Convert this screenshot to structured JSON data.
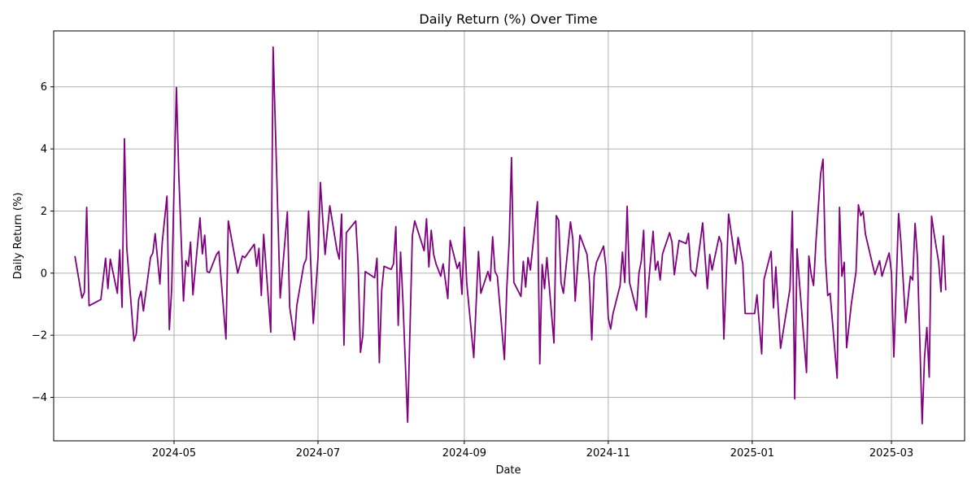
{
  "chart_data": {
    "type": "line",
    "title": "Daily Return (%) Over Time",
    "xlabel": "Date",
    "ylabel": "Daily Return (%)",
    "x_ticks": [
      "2024-05",
      "2024-07",
      "2024-09",
      "2024-11",
      "2025-01",
      "2025-03"
    ],
    "y_ticks": [
      -4,
      -2,
      0,
      2,
      4,
      6
    ],
    "xlim": [
      "2024-03-11",
      "2025-04-01"
    ],
    "ylim": [
      -5.4,
      7.8
    ],
    "grid": true,
    "series": [
      {
        "color": "#800080",
        "points": [
          [
            "2024-03-20",
            0.55
          ],
          [
            "2024-03-23",
            -0.8
          ],
          [
            "2024-03-24",
            -0.62
          ],
          [
            "2024-03-25",
            2.12
          ],
          [
            "2024-03-26",
            -1.05
          ],
          [
            "2024-03-31",
            -0.85
          ],
          [
            "2024-04-02",
            0.48
          ],
          [
            "2024-04-03",
            -0.5
          ],
          [
            "2024-04-04",
            0.45
          ],
          [
            "2024-04-07",
            -0.65
          ],
          [
            "2024-04-08",
            0.75
          ],
          [
            "2024-04-09",
            -1.1
          ],
          [
            "2024-04-10",
            4.33
          ],
          [
            "2024-04-11",
            0.8
          ],
          [
            "2024-04-14",
            -2.18
          ],
          [
            "2024-04-15",
            -1.95
          ],
          [
            "2024-04-16",
            -0.85
          ],
          [
            "2024-04-17",
            -0.58
          ],
          [
            "2024-04-18",
            -1.22
          ],
          [
            "2024-04-21",
            0.5
          ],
          [
            "2024-04-22",
            0.65
          ],
          [
            "2024-04-23",
            1.27
          ],
          [
            "2024-04-25",
            -0.35
          ],
          [
            "2024-04-26",
            1.0
          ],
          [
            "2024-04-28",
            2.48
          ],
          [
            "2024-04-29",
            -1.82
          ],
          [
            "2024-04-30",
            -0.5
          ],
          [
            "2024-05-02",
            5.98
          ],
          [
            "2024-05-03",
            3.2
          ],
          [
            "2024-05-05",
            -0.9
          ],
          [
            "2024-05-06",
            0.4
          ],
          [
            "2024-05-07",
            0.22
          ],
          [
            "2024-05-08",
            1.0
          ],
          [
            "2024-05-09",
            -0.7
          ],
          [
            "2024-05-12",
            1.78
          ],
          [
            "2024-05-13",
            0.62
          ],
          [
            "2024-05-14",
            1.22
          ],
          [
            "2024-05-15",
            0.05
          ],
          [
            "2024-05-16",
            0.02
          ],
          [
            "2024-05-19",
            0.6
          ],
          [
            "2024-05-20",
            0.7
          ],
          [
            "2024-05-23",
            -2.12
          ],
          [
            "2024-05-24",
            1.68
          ],
          [
            "2024-05-28",
            0.0
          ],
          [
            "2024-05-30",
            0.55
          ],
          [
            "2024-05-31",
            0.5
          ],
          [
            "2024-06-04",
            0.93
          ],
          [
            "2024-06-05",
            0.22
          ],
          [
            "2024-06-06",
            0.8
          ],
          [
            "2024-06-07",
            -0.72
          ],
          [
            "2024-06-08",
            1.25
          ],
          [
            "2024-06-11",
            -1.9
          ],
          [
            "2024-06-12",
            7.28
          ],
          [
            "2024-06-15",
            -0.8
          ],
          [
            "2024-06-18",
            1.97
          ],
          [
            "2024-06-19",
            -1.1
          ],
          [
            "2024-06-21",
            -2.15
          ],
          [
            "2024-06-22",
            -1.05
          ],
          [
            "2024-06-25",
            0.28
          ],
          [
            "2024-06-26",
            0.45
          ],
          [
            "2024-06-27",
            2.0
          ],
          [
            "2024-06-29",
            -1.62
          ],
          [
            "2024-07-01",
            0.5
          ],
          [
            "2024-07-02",
            2.92
          ],
          [
            "2024-07-04",
            0.6
          ],
          [
            "2024-07-06",
            2.17
          ],
          [
            "2024-07-09",
            0.75
          ],
          [
            "2024-07-10",
            0.45
          ],
          [
            "2024-07-11",
            1.9
          ],
          [
            "2024-07-12",
            -2.32
          ],
          [
            "2024-07-13",
            1.3
          ],
          [
            "2024-07-17",
            1.68
          ],
          [
            "2024-07-18",
            0.3
          ],
          [
            "2024-07-19",
            -2.55
          ],
          [
            "2024-07-20",
            -2.0
          ],
          [
            "2024-07-21",
            0.05
          ],
          [
            "2024-07-25",
            -0.15
          ],
          [
            "2024-07-26",
            0.48
          ],
          [
            "2024-07-27",
            -2.88
          ],
          [
            "2024-07-28",
            -0.55
          ],
          [
            "2024-07-29",
            0.22
          ],
          [
            "2024-08-01",
            0.12
          ],
          [
            "2024-08-02",
            0.3
          ],
          [
            "2024-08-03",
            1.5
          ],
          [
            "2024-08-04",
            -1.68
          ],
          [
            "2024-08-05",
            0.68
          ],
          [
            "2024-08-06",
            -0.9
          ],
          [
            "2024-08-08",
            -4.8
          ],
          [
            "2024-08-09",
            -1.8
          ],
          [
            "2024-08-10",
            1.2
          ],
          [
            "2024-08-11",
            1.68
          ],
          [
            "2024-08-15",
            0.72
          ],
          [
            "2024-08-16",
            1.75
          ],
          [
            "2024-08-17",
            0.2
          ],
          [
            "2024-08-18",
            1.38
          ],
          [
            "2024-08-19",
            0.6
          ],
          [
            "2024-08-20",
            0.3
          ],
          [
            "2024-08-22",
            -0.1
          ],
          [
            "2024-08-23",
            0.3
          ],
          [
            "2024-08-25",
            -0.82
          ],
          [
            "2024-08-26",
            1.05
          ],
          [
            "2024-08-29",
            0.15
          ],
          [
            "2024-08-30",
            0.35
          ],
          [
            "2024-08-31",
            -0.68
          ],
          [
            "2024-09-01",
            1.48
          ],
          [
            "2024-09-02",
            -0.3
          ],
          [
            "2024-09-05",
            -2.72
          ],
          [
            "2024-09-06",
            -1.0
          ],
          [
            "2024-09-07",
            0.7
          ],
          [
            "2024-09-08",
            -0.65
          ],
          [
            "2024-09-11",
            0.05
          ],
          [
            "2024-09-12",
            -0.25
          ],
          [
            "2024-09-13",
            1.17
          ],
          [
            "2024-09-14",
            0.05
          ],
          [
            "2024-09-15",
            -0.1
          ],
          [
            "2024-09-18",
            -2.78
          ],
          [
            "2024-09-19",
            -0.5
          ],
          [
            "2024-09-20",
            1.0
          ],
          [
            "2024-09-21",
            3.72
          ],
          [
            "2024-09-22",
            -0.3
          ],
          [
            "2024-09-25",
            -0.75
          ],
          [
            "2024-09-26",
            0.38
          ],
          [
            "2024-09-27",
            -0.45
          ],
          [
            "2024-09-28",
            0.5
          ],
          [
            "2024-09-29",
            0.1
          ],
          [
            "2024-10-02",
            2.3
          ],
          [
            "2024-10-03",
            -2.92
          ],
          [
            "2024-10-04",
            0.28
          ],
          [
            "2024-10-05",
            -0.5
          ],
          [
            "2024-10-06",
            0.5
          ],
          [
            "2024-10-09",
            -2.25
          ],
          [
            "2024-10-10",
            1.85
          ],
          [
            "2024-10-11",
            1.7
          ],
          [
            "2024-10-12",
            -0.3
          ],
          [
            "2024-10-13",
            -0.65
          ],
          [
            "2024-10-16",
            1.65
          ],
          [
            "2024-10-17",
            1.1
          ],
          [
            "2024-10-18",
            -0.9
          ],
          [
            "2024-10-19",
            0.2
          ],
          [
            "2024-10-20",
            1.22
          ],
          [
            "2024-10-23",
            0.6
          ],
          [
            "2024-10-24",
            -0.3
          ],
          [
            "2024-10-25",
            -2.15
          ],
          [
            "2024-10-26",
            -0.1
          ],
          [
            "2024-10-27",
            0.35
          ],
          [
            "2024-10-30",
            0.87
          ],
          [
            "2024-10-31",
            0.2
          ],
          [
            "2024-11-01",
            -1.45
          ],
          [
            "2024-11-02",
            -1.8
          ],
          [
            "2024-11-03",
            -1.3
          ],
          [
            "2024-11-06",
            -0.4
          ],
          [
            "2024-11-07",
            0.68
          ],
          [
            "2024-11-08",
            -0.3
          ],
          [
            "2024-11-09",
            2.15
          ],
          [
            "2024-11-10",
            -0.3
          ],
          [
            "2024-11-13",
            -1.2
          ],
          [
            "2024-11-14",
            0.0
          ],
          [
            "2024-11-15",
            0.4
          ],
          [
            "2024-11-16",
            1.38
          ],
          [
            "2024-11-17",
            -1.42
          ],
          [
            "2024-11-18",
            -0.4
          ],
          [
            "2024-11-20",
            1.35
          ],
          [
            "2024-11-21",
            0.1
          ],
          [
            "2024-11-22",
            0.38
          ],
          [
            "2024-11-23",
            -0.22
          ],
          [
            "2024-11-24",
            0.62
          ],
          [
            "2024-11-27",
            1.3
          ],
          [
            "2024-11-28",
            1.0
          ],
          [
            "2024-11-29",
            -0.05
          ],
          [
            "2024-12-01",
            1.05
          ],
          [
            "2024-12-04",
            0.95
          ],
          [
            "2024-12-05",
            1.28
          ],
          [
            "2024-12-06",
            0.1
          ],
          [
            "2024-12-08",
            -0.1
          ],
          [
            "2024-12-10",
            1.0
          ],
          [
            "2024-12-11",
            1.62
          ],
          [
            "2024-12-13",
            -0.5
          ],
          [
            "2024-12-14",
            0.6
          ],
          [
            "2024-12-15",
            0.1
          ],
          [
            "2024-12-18",
            1.18
          ],
          [
            "2024-12-19",
            0.95
          ],
          [
            "2024-12-20",
            -2.12
          ],
          [
            "2024-12-22",
            1.9
          ],
          [
            "2024-12-25",
            0.3
          ],
          [
            "2024-12-26",
            1.15
          ],
          [
            "2024-12-28",
            0.3
          ],
          [
            "2024-12-29",
            -1.3
          ],
          [
            "2025-01-02",
            -1.3
          ],
          [
            "2025-01-03",
            -0.7
          ],
          [
            "2025-01-05",
            -2.6
          ],
          [
            "2025-01-06",
            -0.2
          ],
          [
            "2025-01-09",
            0.7
          ],
          [
            "2025-01-10",
            -1.12
          ],
          [
            "2025-01-11",
            0.2
          ],
          [
            "2025-01-13",
            -2.42
          ],
          [
            "2025-01-17",
            -0.5
          ],
          [
            "2025-01-18",
            2.0
          ],
          [
            "2025-01-19",
            -4.05
          ],
          [
            "2025-01-20",
            0.78
          ],
          [
            "2025-01-21",
            -0.3
          ],
          [
            "2025-01-24",
            -3.2
          ],
          [
            "2025-01-25",
            0.55
          ],
          [
            "2025-01-26",
            -0.05
          ],
          [
            "2025-01-27",
            -0.4
          ],
          [
            "2025-01-28",
            1.0
          ],
          [
            "2025-01-30",
            3.2
          ],
          [
            "2025-01-31",
            3.67
          ],
          [
            "2025-02-01",
            0.5
          ],
          [
            "2025-02-02",
            -0.72
          ],
          [
            "2025-02-03",
            -0.65
          ],
          [
            "2025-02-06",
            -3.38
          ],
          [
            "2025-02-07",
            2.12
          ],
          [
            "2025-02-08",
            -0.1
          ],
          [
            "2025-02-09",
            0.35
          ],
          [
            "2025-02-10",
            -2.4
          ],
          [
            "2025-02-12",
            -1.0
          ],
          [
            "2025-02-14",
            0.05
          ],
          [
            "2025-02-15",
            2.2
          ],
          [
            "2025-02-16",
            1.85
          ],
          [
            "2025-02-17",
            1.98
          ],
          [
            "2025-02-18",
            1.25
          ],
          [
            "2025-02-22",
            -0.05
          ],
          [
            "2025-02-24",
            0.4
          ],
          [
            "2025-02-25",
            -0.1
          ],
          [
            "2025-02-28",
            0.65
          ],
          [
            "2025-03-01",
            0.0
          ],
          [
            "2025-03-02",
            -2.7
          ],
          [
            "2025-03-04",
            1.92
          ],
          [
            "2025-03-05",
            1.0
          ],
          [
            "2025-03-07",
            -1.6
          ],
          [
            "2025-03-09",
            -0.1
          ],
          [
            "2025-03-10",
            -0.22
          ],
          [
            "2025-03-11",
            1.6
          ],
          [
            "2025-03-12",
            0.5
          ],
          [
            "2025-03-14",
            -4.85
          ],
          [
            "2025-03-15",
            -2.72
          ],
          [
            "2025-03-16",
            -1.75
          ],
          [
            "2025-03-17",
            -3.35
          ],
          [
            "2025-03-18",
            1.83
          ],
          [
            "2025-03-19",
            1.3
          ],
          [
            "2025-03-21",
            0.35
          ],
          [
            "2025-03-22",
            -0.6
          ],
          [
            "2025-03-23",
            1.2
          ],
          [
            "2025-03-24",
            -0.55
          ]
        ]
      }
    ]
  }
}
